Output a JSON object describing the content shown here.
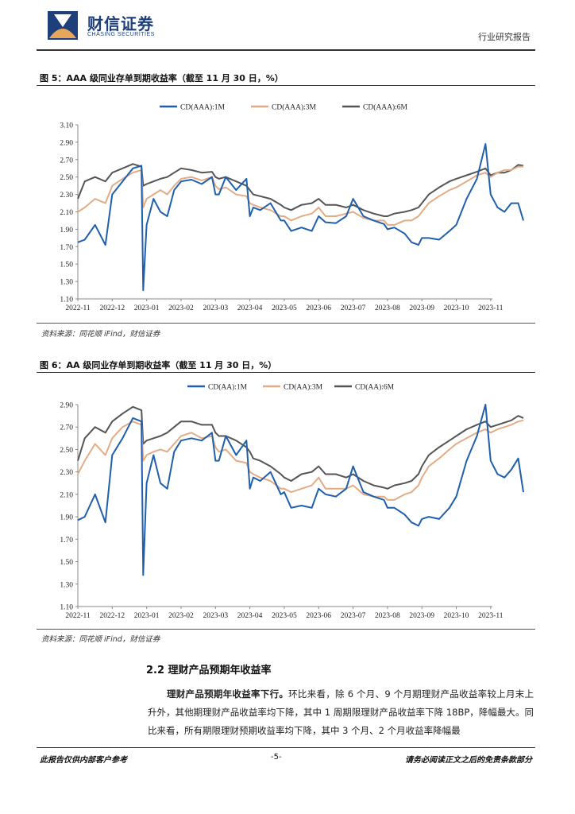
{
  "header": {
    "logo_cn": "财信证券",
    "logo_en": "CHASING SECURITIES",
    "report_type": "行业研究报告"
  },
  "figures": [
    {
      "title": "图 5：AAA 级同业存单到期收益率（截至 11 月 30 日，%）",
      "source": "资料来源：同花顺 iFind，财信证券"
    },
    {
      "title": "图 6：AA 级同业存单到期收益率（截至 11 月 30 日，%）",
      "source": "资料来源：同花顺 iFind，财信证券"
    }
  ],
  "chart_data": [
    {
      "type": "line",
      "title": "",
      "xlabel": "",
      "ylabel": "",
      "ylim": [
        1.1,
        3.1
      ],
      "yticks": [
        "3.10",
        "2.90",
        "2.70",
        "2.50",
        "2.30",
        "2.10",
        "1.90",
        "1.70",
        "1.50",
        "1.30",
        "1.10"
      ],
      "xticks": [
        "2022-11",
        "2022-12",
        "2023-01",
        "2023-02",
        "2023-03",
        "2023-04",
        "2023-05",
        "2023-06",
        "2023-07",
        "2023-08",
        "2023-09",
        "2023-10",
        "2023-11"
      ],
      "legend_position": "top-center",
      "grid": false,
      "x": [
        0,
        0.2,
        0.5,
        0.8,
        1.0,
        1.3,
        1.6,
        1.85,
        1.9,
        2.0,
        2.2,
        2.4,
        2.6,
        2.8,
        3.0,
        3.3,
        3.6,
        3.9,
        4.0,
        4.1,
        4.3,
        4.6,
        4.9,
        5.0,
        5.1,
        5.3,
        5.6,
        5.9,
        6.0,
        6.2,
        6.5,
        6.8,
        7.0,
        7.2,
        7.5,
        7.8,
        8.0,
        8.3,
        8.6,
        8.9,
        9.0,
        9.2,
        9.5,
        9.7,
        9.9,
        10.0,
        10.2,
        10.5,
        10.8,
        11.0,
        11.3,
        11.6,
        11.85,
        12.0,
        12.2,
        12.4,
        12.6,
        12.8,
        12.95
      ],
      "series": [
        {
          "name": "CD(AAA):1M",
          "color": "#1f5fad",
          "values": [
            1.75,
            1.78,
            1.95,
            1.72,
            2.3,
            2.45,
            2.6,
            2.63,
            1.2,
            1.95,
            2.25,
            2.1,
            2.05,
            2.35,
            2.45,
            2.47,
            2.42,
            2.5,
            2.3,
            2.3,
            2.5,
            2.35,
            2.48,
            2.05,
            2.15,
            2.12,
            2.2,
            2.0,
            2.0,
            1.88,
            1.92,
            1.88,
            2.05,
            1.98,
            1.97,
            2.05,
            2.25,
            2.05,
            2.0,
            1.96,
            1.9,
            1.92,
            1.85,
            1.75,
            1.72,
            1.8,
            1.8,
            1.78,
            1.88,
            1.95,
            2.25,
            2.48,
            2.88,
            2.3,
            2.15,
            2.1,
            2.2,
            2.2,
            2.0
          ]
        },
        {
          "name": "CD(AAA):3M",
          "color": "#e2ac86",
          "values": [
            2.1,
            2.15,
            2.25,
            2.2,
            2.4,
            2.48,
            2.55,
            2.58,
            2.15,
            2.25,
            2.3,
            2.35,
            2.3,
            2.4,
            2.48,
            2.5,
            2.46,
            2.5,
            2.4,
            2.36,
            2.38,
            2.3,
            2.28,
            2.2,
            2.18,
            2.15,
            2.12,
            2.05,
            2.05,
            2.0,
            2.05,
            2.08,
            2.15,
            2.05,
            2.05,
            2.08,
            2.1,
            2.03,
            2.0,
            2.0,
            1.95,
            1.95,
            2.0,
            2.0,
            2.05,
            2.1,
            2.2,
            2.28,
            2.35,
            2.38,
            2.45,
            2.52,
            2.55,
            2.5,
            2.55,
            2.58,
            2.58,
            2.62,
            2.62
          ]
        },
        {
          "name": "CD(AAA):6M",
          "color": "#555555",
          "values": [
            2.25,
            2.45,
            2.5,
            2.45,
            2.55,
            2.6,
            2.65,
            2.62,
            2.4,
            2.42,
            2.45,
            2.48,
            2.5,
            2.55,
            2.6,
            2.58,
            2.55,
            2.56,
            2.5,
            2.48,
            2.5,
            2.45,
            2.4,
            2.35,
            2.3,
            2.28,
            2.25,
            2.18,
            2.15,
            2.12,
            2.18,
            2.2,
            2.25,
            2.18,
            2.18,
            2.15,
            2.18,
            2.12,
            2.08,
            2.05,
            2.05,
            2.08,
            2.1,
            2.12,
            2.15,
            2.2,
            2.3,
            2.38,
            2.45,
            2.48,
            2.52,
            2.56,
            2.6,
            2.52,
            2.55,
            2.55,
            2.58,
            2.64,
            2.63
          ]
        }
      ]
    },
    {
      "type": "line",
      "title": "",
      "xlabel": "",
      "ylabel": "",
      "ylim": [
        1.1,
        2.9
      ],
      "yticks": [
        "2.90",
        "2.70",
        "2.50",
        "2.30",
        "2.10",
        "1.90",
        "1.70",
        "1.50",
        "1.30",
        "1.10"
      ],
      "xticks": [
        "2022-11",
        "2022-12",
        "2023-01",
        "2023-02",
        "2023-03",
        "2023-04",
        "2023-05",
        "2023-06",
        "2023-07",
        "2023-08",
        "2023-09",
        "2023-10",
        "2023-11"
      ],
      "legend_position": "top-center",
      "grid": false,
      "x": [
        0,
        0.2,
        0.5,
        0.8,
        1.0,
        1.3,
        1.6,
        1.85,
        1.9,
        2.0,
        2.2,
        2.4,
        2.6,
        2.8,
        3.0,
        3.3,
        3.6,
        3.9,
        4.0,
        4.1,
        4.3,
        4.6,
        4.9,
        5.0,
        5.1,
        5.3,
        5.6,
        5.9,
        6.0,
        6.2,
        6.5,
        6.8,
        7.0,
        7.2,
        7.5,
        7.8,
        8.0,
        8.3,
        8.6,
        8.9,
        9.0,
        9.2,
        9.5,
        9.7,
        9.9,
        10.0,
        10.2,
        10.5,
        10.8,
        11.0,
        11.3,
        11.6,
        11.85,
        12.0,
        12.2,
        12.4,
        12.6,
        12.8,
        12.95
      ],
      "series": [
        {
          "name": "CD(AA):1M",
          "color": "#1f5fad",
          "values": [
            1.87,
            1.9,
            2.1,
            1.85,
            2.45,
            2.6,
            2.78,
            2.75,
            1.38,
            2.2,
            2.45,
            2.2,
            2.15,
            2.48,
            2.58,
            2.6,
            2.58,
            2.65,
            2.4,
            2.4,
            2.62,
            2.45,
            2.58,
            2.15,
            2.25,
            2.22,
            2.3,
            2.1,
            2.12,
            1.98,
            2.0,
            1.98,
            2.15,
            2.1,
            2.08,
            2.15,
            2.35,
            2.12,
            2.08,
            2.05,
            1.98,
            1.98,
            1.92,
            1.85,
            1.82,
            1.88,
            1.9,
            1.88,
            1.98,
            2.08,
            2.4,
            2.62,
            2.9,
            2.4,
            2.28,
            2.25,
            2.32,
            2.42,
            2.12
          ]
        },
        {
          "name": "CD(AA):3M",
          "color": "#e2ac86",
          "values": [
            2.28,
            2.4,
            2.55,
            2.45,
            2.6,
            2.7,
            2.75,
            2.72,
            2.4,
            2.45,
            2.48,
            2.5,
            2.48,
            2.55,
            2.62,
            2.65,
            2.6,
            2.62,
            2.52,
            2.48,
            2.5,
            2.4,
            2.38,
            2.3,
            2.28,
            2.25,
            2.22,
            2.15,
            2.15,
            2.12,
            2.15,
            2.18,
            2.25,
            2.15,
            2.15,
            2.15,
            2.18,
            2.1,
            2.08,
            2.08,
            2.05,
            2.05,
            2.1,
            2.12,
            2.18,
            2.25,
            2.35,
            2.42,
            2.5,
            2.55,
            2.6,
            2.65,
            2.68,
            2.65,
            2.68,
            2.7,
            2.72,
            2.75,
            2.76
          ]
        },
        {
          "name": "CD(AA):6M",
          "color": "#555555",
          "values": [
            2.4,
            2.6,
            2.7,
            2.65,
            2.75,
            2.82,
            2.88,
            2.85,
            2.55,
            2.58,
            2.6,
            2.62,
            2.65,
            2.7,
            2.75,
            2.75,
            2.72,
            2.72,
            2.65,
            2.62,
            2.62,
            2.58,
            2.52,
            2.48,
            2.42,
            2.4,
            2.35,
            2.28,
            2.25,
            2.22,
            2.28,
            2.3,
            2.35,
            2.28,
            2.28,
            2.25,
            2.28,
            2.22,
            2.18,
            2.16,
            2.15,
            2.18,
            2.2,
            2.22,
            2.28,
            2.35,
            2.45,
            2.52,
            2.58,
            2.62,
            2.68,
            2.72,
            2.75,
            2.7,
            2.72,
            2.74,
            2.76,
            2.8,
            2.78
          ]
        }
      ]
    }
  ],
  "section": {
    "heading": "2.2 理财产品预期年收益率",
    "para_lead": "理财产品预期年收益率下行。",
    "para_body": "环比来看，除 6 个月、9 个月期理财产品收益率较上月末上升外，其他期理财产品收益率均下降，其中 1 周期限理财产品收益率下降 18BP，降幅最大。同比来看，所有期限理财预期收益率均下降，其中 3 个月、2 个月收益率降幅最"
  },
  "footer": {
    "left": "此报告仅供内部客户参考",
    "center": "-5-",
    "right": "请务必阅读正文之后的免责条款部分"
  }
}
